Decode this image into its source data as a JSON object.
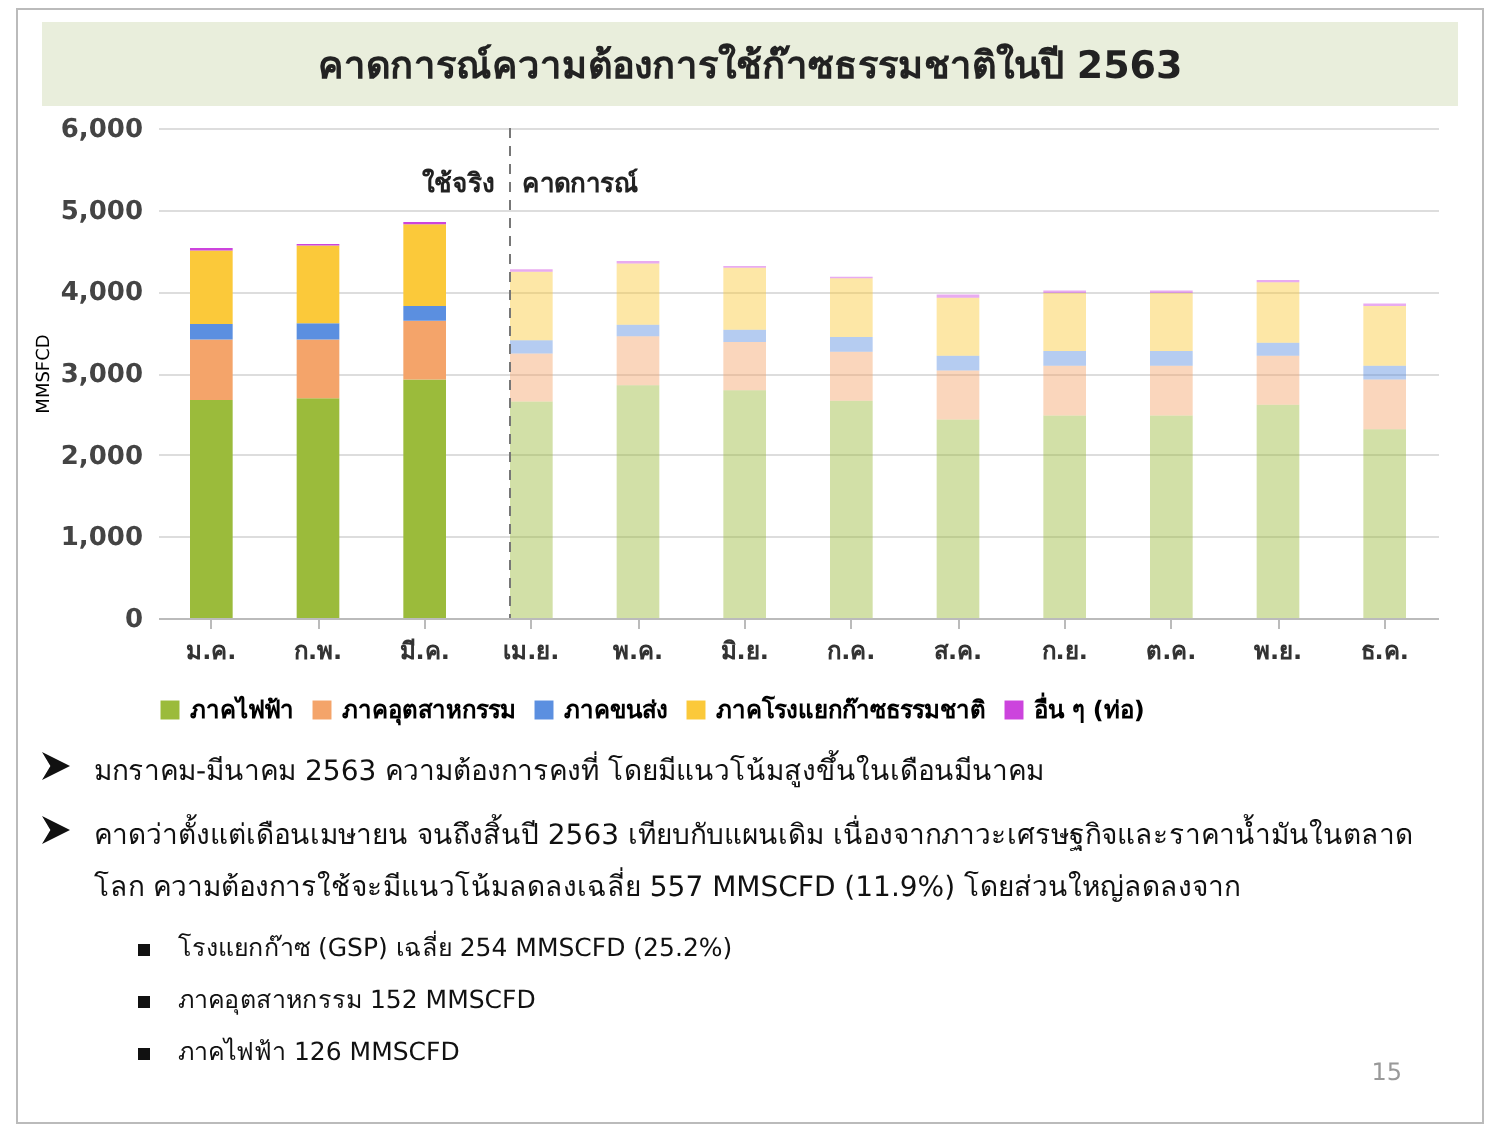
{
  "chart_data": {
    "type": "bar",
    "title": "คาดการณ์ความต้องการใช้ก๊าซธรรมชาติในปี 2563",
    "ylabel": "MMSFCD",
    "categories": [
      "ม.ค.",
      "ก.พ.",
      "มี.ค.",
      "เม.ย.",
      "พ.ค.",
      "มิ.ย.",
      "ก.ค.",
      "ส.ค.",
      "ก.ย.",
      "ต.ค.",
      "พ.ย.",
      "ธ.ค."
    ],
    "stacked": true,
    "series": [
      {
        "name": "ภาคไฟฟ้า",
        "color": "#9bbb3b",
        "values": [
          2670,
          2690,
          2920,
          2650,
          2850,
          2790,
          2660,
          2430,
          2480,
          2480,
          2610,
          2310
        ]
      },
      {
        "name": "ภาคอุตสาหกรรม",
        "color": "#f4a46a",
        "values": [
          740,
          720,
          720,
          590,
          600,
          590,
          600,
          600,
          610,
          610,
          600,
          610
        ]
      },
      {
        "name": "ภาคขนส่ง",
        "color": "#5b8fe0",
        "values": [
          190,
          200,
          180,
          160,
          140,
          150,
          180,
          180,
          180,
          180,
          160,
          170
        ]
      },
      {
        "name": "ภาคโรงแยกก๊าซธรรมชาติ",
        "color": "#fbc93a",
        "values": [
          900,
          950,
          1000,
          840,
          750,
          760,
          720,
          710,
          710,
          710,
          740,
          730
        ]
      },
      {
        "name": "อื่น ๆ (ท่อ)",
        "color": "#cc44dd",
        "values": [
          30,
          20,
          30,
          30,
          30,
          20,
          20,
          40,
          30,
          30,
          30,
          30
        ]
      }
    ],
    "ylim": [
      0,
      6000
    ],
    "yticks": [
      0,
      {
        "value": 1000,
        "label": "1,000"
      },
      {
        "value": 2000,
        "label": "2,000"
      },
      {
        "value": 3000,
        "label": "3,000"
      },
      {
        "value": 4000,
        "label": "4,000"
      },
      {
        "value": 5000,
        "label": "5,000"
      },
      {
        "value": 6000,
        "label": "6,000"
      }
    ],
    "grid": "y",
    "legend": "bottom",
    "ref_lines": [
      {
        "axis": "x",
        "value": "เม.ย.",
        "line_style": "dashed",
        "color": "#777777"
      }
    ],
    "annotations": [
      "ใช้จริง",
      "คาดการณ์",
      "มกราคม-มีนาคม 2563 ความต้องการคงที่ โดยมีแนวโน้มสูงขึ้นในเดือนมีนาคม",
      "คาดว่าตั้งแต่เดือนเมษายน จนถึงสิ้นปี 2563 เทียบกับแผนเดิม เนื่องจากภาวะเศรษฐกิจและราคาน้ำมันในตลาดโลก ความต้องการใช้จะมีแนวโน้มลดลงเฉลี่ย 557 MMSCFD (11.9%) โดยส่วนใหญ่ลดลงจาก",
      "โรงแยกก๊าซ (GSP) เฉลี่ย 254 MMSCFD (25.2%)",
      "ภาคอุตสาหกรรม 152 MMSCFD",
      "ภาคไฟฟ้า 126 MMSCFD",
      "15"
    ]
  }
}
